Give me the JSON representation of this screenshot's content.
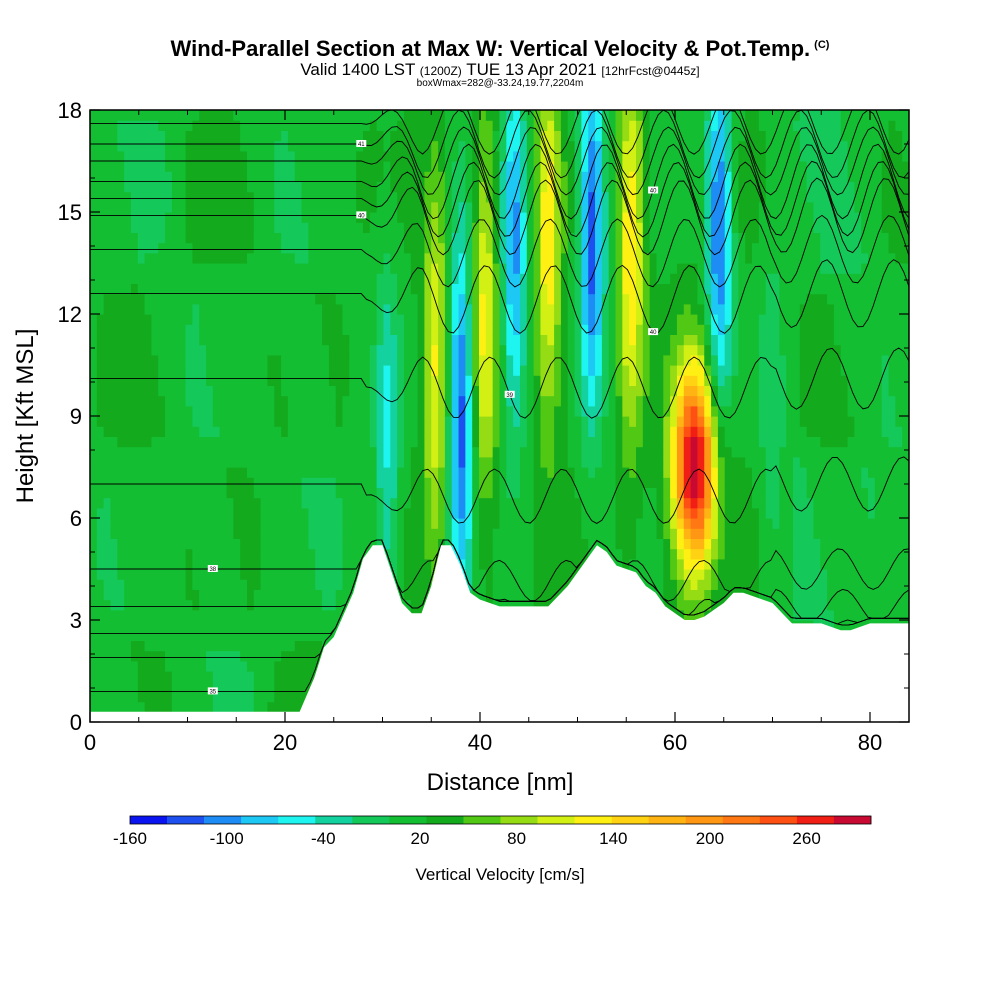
{
  "chart_data": {
    "type": "heatmap",
    "title": "Wind-Parallel Section at Max W: Vertical Velocity & Pot.Temp.",
    "title_mark": "(C)",
    "subtitle_main": "Valid 1400 LST",
    "subtitle_z": "(1200Z)",
    "subtitle_date": "TUE 13 Apr 2021",
    "subtitle_fcst": "[12hrFcst@0445z]",
    "subtitle2": "boxWmax=282@-33.24,19.77,2204m",
    "xlabel": "Distance [nm]",
    "ylabel": "Height [Kft MSL]",
    "xlim": [
      0,
      84
    ],
    "ylim": [
      0,
      18
    ],
    "xticks": [
      0,
      20,
      40,
      60,
      80
    ],
    "yticks": [
      0,
      3,
      6,
      9,
      12,
      15,
      18
    ],
    "colorbar": {
      "title": "Vertical Velocity [cm/s]",
      "ticks": [
        -160,
        -100,
        -40,
        20,
        80,
        140,
        200,
        260
      ],
      "range": [
        -160,
        300
      ],
      "colors": [
        "#0a14f0",
        "#1e50f0",
        "#1e8cf5",
        "#1ec8f5",
        "#1ef5f0",
        "#14d2a0",
        "#14c85a",
        "#14be32",
        "#14aa1e",
        "#50c814",
        "#96dc14",
        "#d2f014",
        "#fff014",
        "#ffd214",
        "#ffb414",
        "#ff9614",
        "#ff7814",
        "#ff5014",
        "#f01e14",
        "#c80a32"
      ]
    },
    "velocity_features": [
      {
        "x": 30.5,
        "height": 8.0,
        "value": -70
      },
      {
        "x": 35.5,
        "height": 10.5,
        "value": 100
      },
      {
        "x": 38.0,
        "height": 9.0,
        "value": -150
      },
      {
        "x": 40.5,
        "height": 12.0,
        "value": 100
      },
      {
        "x": 43.5,
        "height": 14.0,
        "value": -120
      },
      {
        "x": 47.0,
        "height": 14.0,
        "value": 110
      },
      {
        "x": 51.5,
        "height": 14.5,
        "value": -150
      },
      {
        "x": 55.5,
        "height": 14.0,
        "value": 120
      },
      {
        "x": 62.0,
        "height": 7.5,
        "value": 282
      },
      {
        "x": 64.5,
        "height": 14.5,
        "value": -140
      },
      {
        "x": 70.0,
        "height": 9.0,
        "value": -40
      }
    ],
    "terrain": {
      "x": [
        0,
        21.5,
        23,
        24,
        25,
        27,
        28,
        29,
        30,
        32,
        33,
        34,
        35,
        36,
        37,
        38,
        39,
        40,
        42,
        47,
        49,
        51,
        52,
        53,
        54,
        56,
        57,
        58,
        59,
        61,
        62,
        63,
        64,
        65,
        66,
        67,
        69,
        70,
        71,
        72,
        75,
        77,
        78,
        80,
        84
      ],
      "height": [
        0.3,
        0.3,
        1.3,
        2.2,
        2.5,
        3.8,
        4.8,
        5.2,
        5.2,
        3.5,
        3.2,
        3.2,
        4.0,
        5.2,
        5.2,
        4.6,
        3.8,
        3.6,
        3.4,
        3.4,
        4.0,
        4.8,
        5.2,
        5.0,
        4.6,
        4.4,
        4.0,
        3.8,
        3.4,
        3.0,
        3.0,
        3.1,
        3.3,
        3.5,
        3.8,
        3.8,
        3.6,
        3.5,
        3.2,
        2.9,
        2.9,
        2.7,
        2.7,
        2.9,
        2.9
      ]
    },
    "theta_contours": [
      {
        "label": "35",
        "base": 0.9,
        "ripple": 0.2
      },
      {
        "label": "",
        "base": 1.9,
        "ripple": 0.3
      },
      {
        "label": "",
        "base": 2.6,
        "ripple": 0.4
      },
      {
        "label": "",
        "base": 3.4,
        "ripple": 0.5
      },
      {
        "label": "38",
        "base": 4.5,
        "ripple": 0.6
      },
      {
        "label": "",
        "base": 7.0,
        "ripple": 0.8
      },
      {
        "label": "39",
        "base": 10.1,
        "ripple": 0.9
      },
      {
        "label": "40",
        "base": 12.6,
        "ripple": 1.0
      },
      {
        "label": "",
        "base": 13.9,
        "ripple": 1.0
      },
      {
        "label": "40",
        "base": 14.9,
        "ripple": 1.1
      },
      {
        "label": "",
        "base": 15.4,
        "ripple": 1.1
      },
      {
        "label": "40",
        "base": 15.9,
        "ripple": 1.1
      },
      {
        "label": "",
        "base": 16.5,
        "ripple": 1.0
      },
      {
        "label": "41",
        "base": 17.0,
        "ripple": 1.0
      },
      {
        "label": "",
        "base": 17.6,
        "ripple": 0.9
      }
    ]
  }
}
